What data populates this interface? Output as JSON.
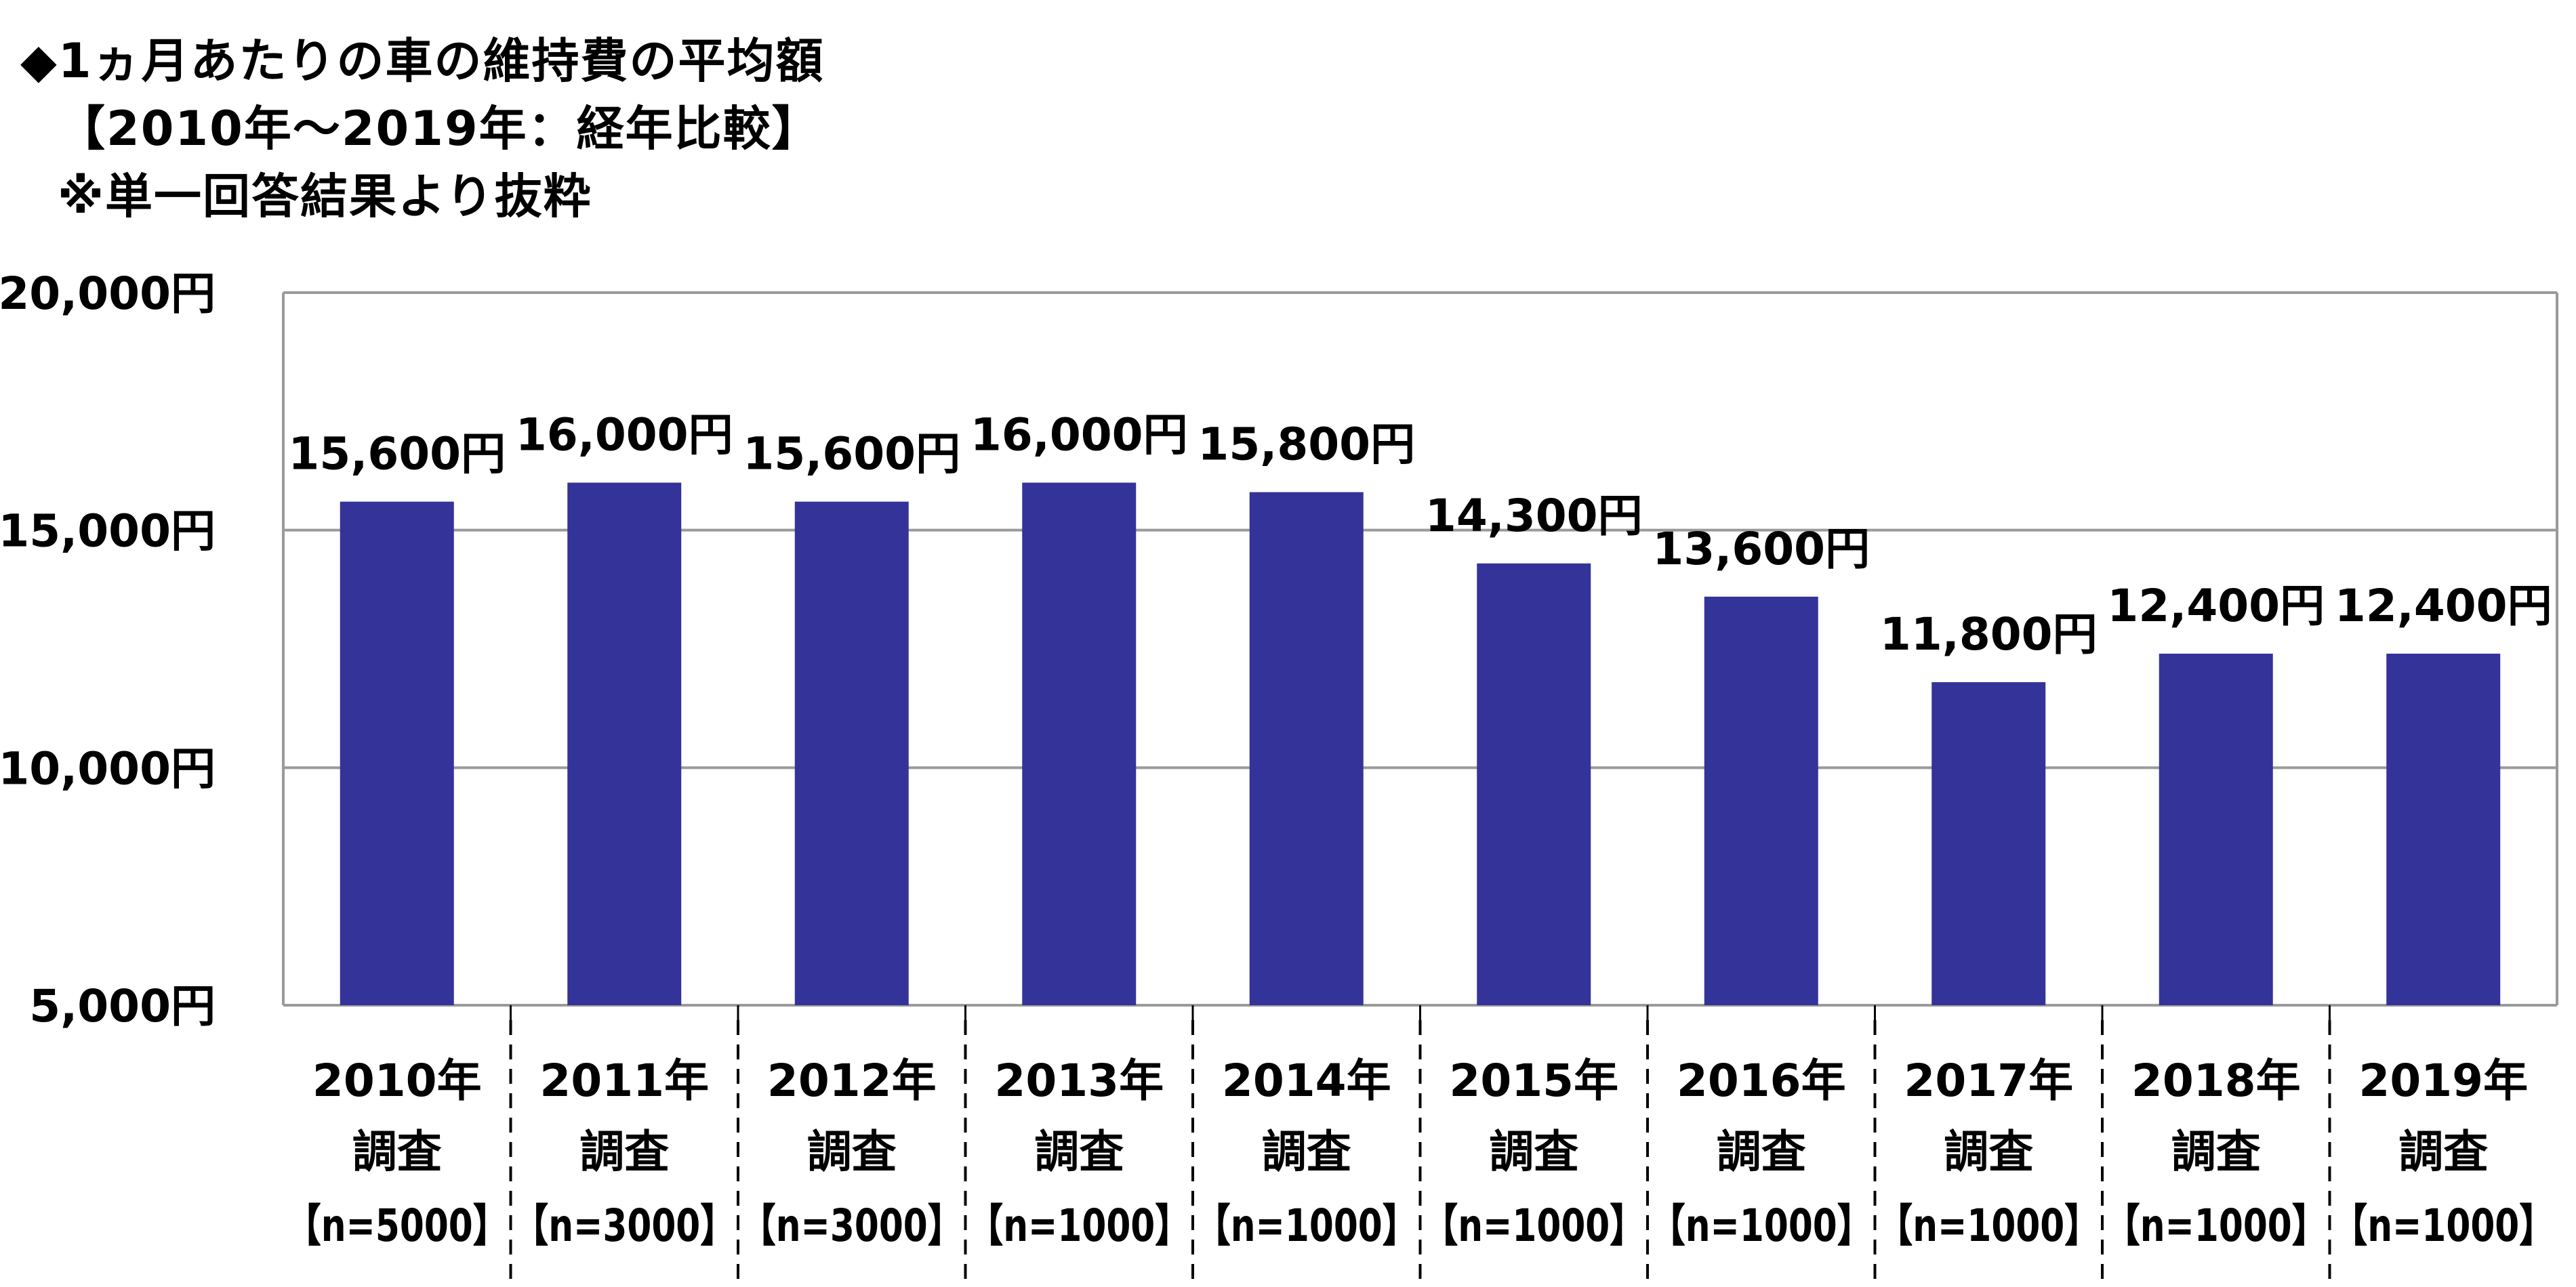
{
  "title": {
    "line1": "◆1ヵ月あたりの車の維持費の平均額",
    "line2": "【2010年～2019年：経年比較】",
    "line3": "※単一回答結果より抜粋"
  },
  "chart_data": {
    "type": "bar",
    "categories": [
      [
        "2010年",
        "調査",
        "【n=5000】"
      ],
      [
        "2011年",
        "調査",
        "【n=3000】"
      ],
      [
        "2012年",
        "調査",
        "【n=3000】"
      ],
      [
        "2013年",
        "調査",
        "【n=1000】"
      ],
      [
        "2014年",
        "調査",
        "【n=1000】"
      ],
      [
        "2015年",
        "調査",
        "【n=1000】"
      ],
      [
        "2016年",
        "調査",
        "【n=1000】"
      ],
      [
        "2017年",
        "調査",
        "【n=1000】"
      ],
      [
        "2018年",
        "調査",
        "【n=1000】"
      ],
      [
        "2019年",
        "調査",
        "【n=1000】"
      ]
    ],
    "values": [
      15600,
      16000,
      15600,
      16000,
      15800,
      14300,
      13600,
      11800,
      12400,
      12400
    ],
    "data_labels": [
      "15,600円",
      "16,000円",
      "15,600円",
      "16,000円",
      "15,800円",
      "14,300円",
      "13,600円",
      "11,800円",
      "12,400円",
      "12,400円"
    ],
    "ylim": [
      5000,
      20000
    ],
    "yticks": [
      5000,
      10000,
      15000,
      20000
    ],
    "ytick_labels": [
      "5,000円",
      "10,000円",
      "15,000円",
      "20,000円"
    ],
    "grid": true,
    "legend": "none",
    "xlabel": "",
    "ylabel": "",
    "bar_color": "#333399",
    "grid_color": "#9a9a9a"
  }
}
